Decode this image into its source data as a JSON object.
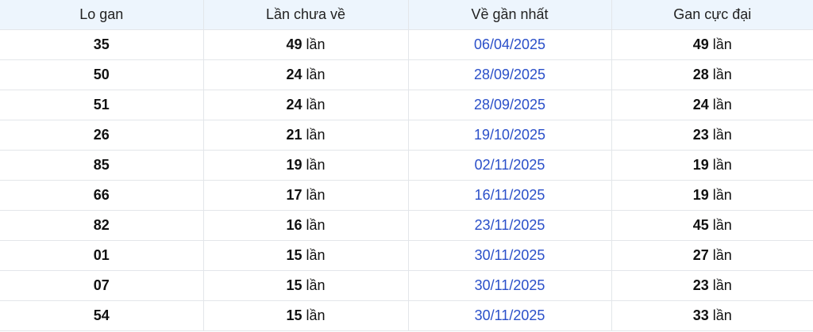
{
  "headers": [
    "Lo gan",
    "Lần chưa về",
    "Về gần nhất",
    "Gan cực đại"
  ],
  "unit": "lần",
  "colors": {
    "date": "#2a4fc9",
    "header_bg": "#edf5fd"
  },
  "rows": [
    {
      "lo": "35",
      "chua_ve": "49",
      "gan_nhat": "06/04/2025",
      "cuc_dai": "49"
    },
    {
      "lo": "50",
      "chua_ve": "24",
      "gan_nhat": "28/09/2025",
      "cuc_dai": "28"
    },
    {
      "lo": "51",
      "chua_ve": "24",
      "gan_nhat": "28/09/2025",
      "cuc_dai": "24"
    },
    {
      "lo": "26",
      "chua_ve": "21",
      "gan_nhat": "19/10/2025",
      "cuc_dai": "23"
    },
    {
      "lo": "85",
      "chua_ve": "19",
      "gan_nhat": "02/11/2025",
      "cuc_dai": "19"
    },
    {
      "lo": "66",
      "chua_ve": "17",
      "gan_nhat": "16/11/2025",
      "cuc_dai": "19"
    },
    {
      "lo": "82",
      "chua_ve": "16",
      "gan_nhat": "23/11/2025",
      "cuc_dai": "45"
    },
    {
      "lo": "01",
      "chua_ve": "15",
      "gan_nhat": "30/11/2025",
      "cuc_dai": "27"
    },
    {
      "lo": "07",
      "chua_ve": "15",
      "gan_nhat": "30/11/2025",
      "cuc_dai": "23"
    },
    {
      "lo": "54",
      "chua_ve": "15",
      "gan_nhat": "30/11/2025",
      "cuc_dai": "33"
    }
  ]
}
